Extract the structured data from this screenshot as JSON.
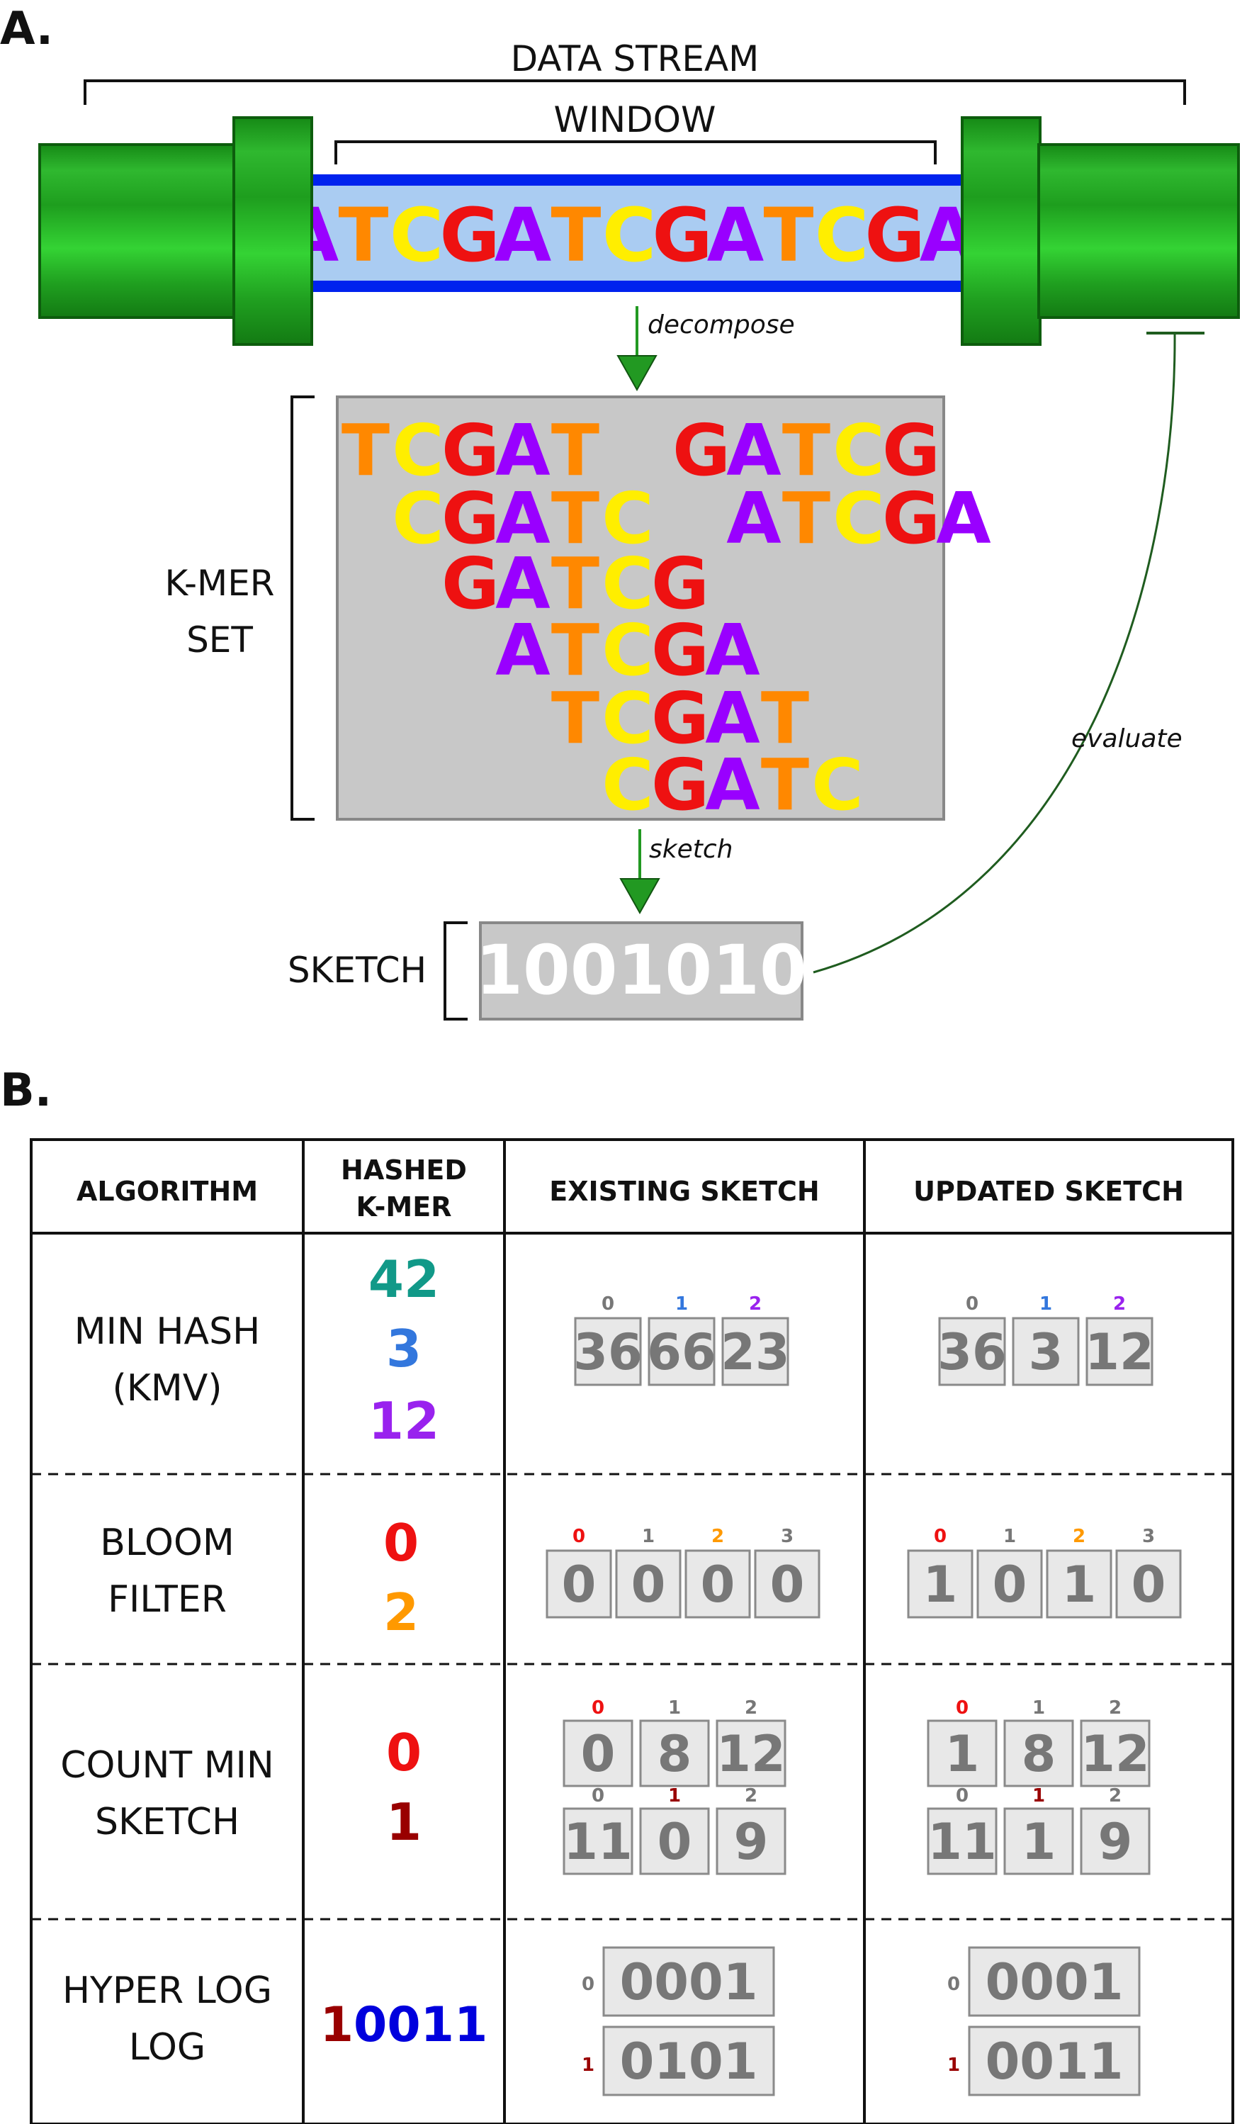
{
  "panel_a": {
    "label": "A.",
    "data_stream_label": "DATA STREAM",
    "window_label": "WINDOW",
    "stream_sequence": "ATCGATCGATCGAT",
    "decompose_label": "decompose",
    "kmer_set_label_line1": "K-MER",
    "kmer_set_label_line2": "SET",
    "kmers": [
      "TCGAT",
      "GATCG",
      "CGATC",
      "ATCGA",
      "GATCG",
      "ATCGA",
      "TCGAT",
      "CGATC"
    ],
    "sketch_arrow_label": "sketch",
    "evaluate_label": "evaluate",
    "sketch_label": "SKETCH",
    "sketch_value": "1001010"
  },
  "panel_b": {
    "label": "B.",
    "headers": {
      "algorithm": "ALGORITHM",
      "hashed_line1": "HASHED",
      "hashed_line2": "K-MER",
      "existing": "EXISTING SKETCH",
      "updated": "UPDATED SKETCH"
    },
    "minhash": {
      "name_line1": "MIN HASH",
      "name_line2": "(KMV)",
      "hashes": [
        "42",
        "3",
        "12"
      ],
      "indices": [
        "0",
        "1",
        "2"
      ],
      "existing": [
        "36",
        "66",
        "23"
      ],
      "updated": [
        "36",
        "3",
        "12"
      ]
    },
    "bloom": {
      "name_line1": "BLOOM",
      "name_line2": "FILTER",
      "hashes": [
        "0",
        "2"
      ],
      "indices": [
        "0",
        "1",
        "2",
        "3"
      ],
      "existing": [
        "0",
        "0",
        "0",
        "0"
      ],
      "updated": [
        "1",
        "0",
        "1",
        "0"
      ]
    },
    "countmin": {
      "name_line1": "COUNT MIN",
      "name_line2": "SKETCH",
      "hashes": [
        "0",
        "1"
      ],
      "indices": [
        "0",
        "1",
        "2"
      ],
      "existing_row0": [
        "0",
        "8",
        "12"
      ],
      "existing_row1": [
        "11",
        "0",
        "9"
      ],
      "updated_row0": [
        "1",
        "8",
        "12"
      ],
      "updated_row1": [
        "11",
        "1",
        "9"
      ]
    },
    "hll": {
      "name_line1": "HYPER LOG",
      "name_line2": "LOG",
      "hash_prefix": "1",
      "hash_rest": "0011",
      "indices": [
        "0",
        "1"
      ],
      "existing": [
        "0001",
        "0101"
      ],
      "updated": [
        "0001",
        "0011"
      ]
    }
  },
  "colors": {
    "A": "#9900ff",
    "T": "#ff8800",
    "C": "#ffee00",
    "G": "#ee1111",
    "teal": "#119988",
    "blue": "#3377dd",
    "purple": "#9922ee",
    "red": "#ee1111",
    "orange": "#ff9900",
    "darkred": "#990000",
    "hllblue": "#0000dd",
    "grey": "#777777",
    "pipe_green": "#22aa22",
    "pipe_blue": "#0022ee",
    "pipe_fill": "#aaccf2",
    "arrow_green": "#229922",
    "kmer_box": "#c8c8c8"
  }
}
